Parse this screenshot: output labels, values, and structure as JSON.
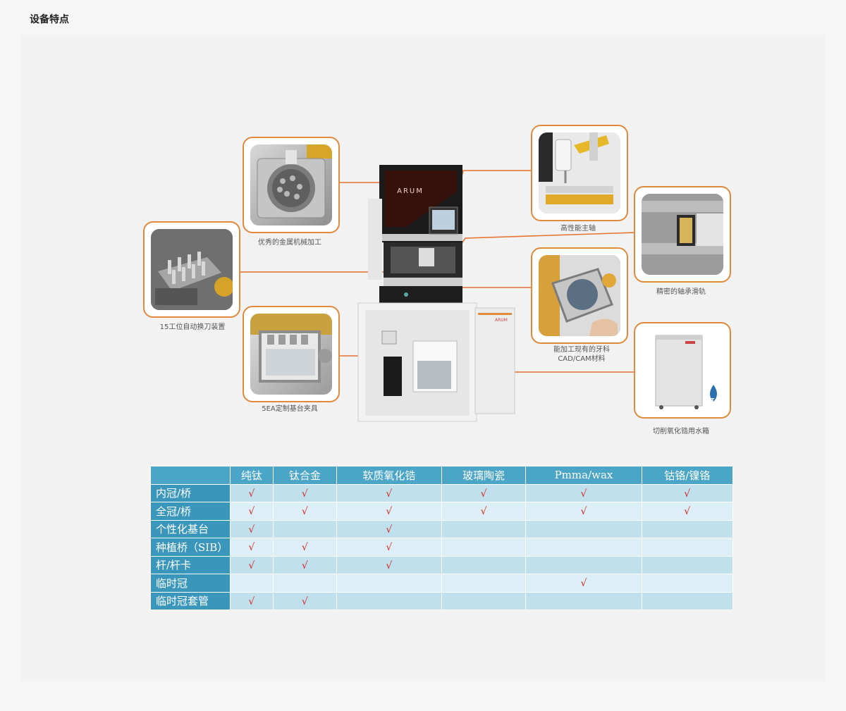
{
  "page_title": "设备特点",
  "diagram": {
    "brand": "ARUM",
    "captions": {
      "metal": "优秀的金属机械加工",
      "toolchanger": "15工位自动换刀装置",
      "fixture": "5EA定制基台夹具",
      "spindle": "高性能主轴",
      "rail": "精密的轴承滑轨",
      "material": "能加工现有的牙科\nCAD/CAM材料",
      "tank": "切削氧化锆用水箱"
    },
    "tank_badge": "WET"
  },
  "table": {
    "columns": [
      "纯钛",
      "钛合金",
      "软质氧化锆",
      "玻璃陶瓷",
      "Pmma/wax",
      "钴铬/镍铬"
    ],
    "check_mark": "√",
    "rows": [
      {
        "label": "内冠/桥",
        "checks": [
          true,
          true,
          true,
          true,
          true,
          true
        ]
      },
      {
        "label": "全冠/桥",
        "checks": [
          true,
          true,
          true,
          true,
          true,
          true
        ]
      },
      {
        "label": "个性化基台",
        "checks": [
          true,
          false,
          true,
          false,
          false,
          false
        ]
      },
      {
        "label": "种植桥（SIB）",
        "checks": [
          true,
          true,
          true,
          false,
          false,
          false
        ]
      },
      {
        "label": "杆/杆卡",
        "checks": [
          true,
          true,
          true,
          false,
          false,
          false
        ]
      },
      {
        "label": "临时冠",
        "checks": [
          false,
          false,
          false,
          false,
          true,
          false
        ]
      },
      {
        "label": "临时冠套管",
        "checks": [
          true,
          true,
          false,
          false,
          false,
          false
        ]
      }
    ]
  }
}
